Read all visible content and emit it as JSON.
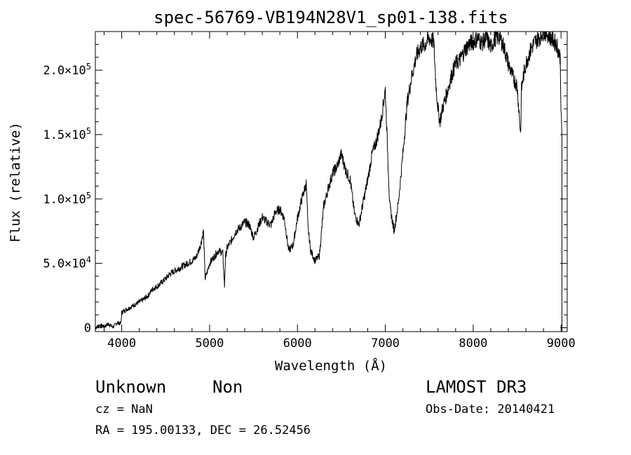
{
  "chart_data": {
    "type": "line",
    "title": "spec-56769-VB194N28V1_sp01-138.fits",
    "xlabel": "Wavelength (Å)",
    "ylabel": "Flux (relative)",
    "xlim": [
      3700,
      9070
    ],
    "ylim": [
      -3000,
      230000
    ],
    "x_ticks": [
      4000,
      5000,
      6000,
      7000,
      8000,
      9000
    ],
    "x_tick_labels": [
      "4000",
      "5000",
      "6000",
      "7000",
      "8000",
      "9000"
    ],
    "y_ticks": [
      0,
      50000,
      100000,
      150000,
      200000
    ],
    "y_tick_labels": [
      {
        "mant": "0",
        "exp": ""
      },
      {
        "mant": "5.0×10",
        "exp": "4"
      },
      {
        "mant": "1.0×10",
        "exp": "5"
      },
      {
        "mant": "1.5×10",
        "exp": "5"
      },
      {
        "mant": "2.0×10",
        "exp": "5"
      }
    ],
    "series": [
      {
        "name": "flux",
        "x": [
          3700,
          3750,
          3800,
          3850,
          3900,
          3950,
          3990,
          4000,
          4050,
          4100,
          4150,
          4200,
          4250,
          4300,
          4350,
          4400,
          4450,
          4500,
          4550,
          4600,
          4650,
          4700,
          4750,
          4800,
          4850,
          4900,
          4930,
          4950,
          4980,
          5000,
          5050,
          5100,
          5150,
          5170,
          5180,
          5200,
          5250,
          5300,
          5350,
          5400,
          5450,
          5500,
          5550,
          5600,
          5650,
          5700,
          5750,
          5800,
          5850,
          5900,
          5950,
          6000,
          6050,
          6100,
          6120,
          6150,
          6200,
          6250,
          6300,
          6350,
          6400,
          6450,
          6500,
          6550,
          6600,
          6650,
          6700,
          6750,
          6800,
          6850,
          6900,
          6950,
          7000,
          7030,
          7050,
          7100,
          7150,
          7200,
          7250,
          7300,
          7350,
          7400,
          7450,
          7500,
          7550,
          7580,
          7600,
          7620,
          7650,
          7700,
          7750,
          7800,
          7850,
          7900,
          7950,
          8000,
          8050,
          8100,
          8150,
          8200,
          8250,
          8300,
          8350,
          8400,
          8450,
          8500,
          8530,
          8540,
          8550,
          8570,
          8600,
          8650,
          8700,
          8750,
          8800,
          8850,
          8900,
          8950,
          8990,
          9000,
          9010
        ],
        "y": [
          0,
          2000,
          1000,
          3000,
          500,
          4000,
          3000,
          12000,
          14000,
          16000,
          18000,
          20000,
          22000,
          25000,
          30000,
          32000,
          35000,
          38000,
          42000,
          44000,
          46000,
          48000,
          50000,
          52000,
          55000,
          65000,
          75000,
          38000,
          45000,
          50000,
          55000,
          60000,
          58000,
          32000,
          55000,
          62000,
          68000,
          75000,
          78000,
          82000,
          80000,
          70000,
          78000,
          86000,
          82000,
          80000,
          90000,
          92000,
          85000,
          60000,
          64000,
          85000,
          100000,
          112000,
          78000,
          60000,
          52000,
          56000,
          95000,
          108000,
          120000,
          125000,
          135000,
          122000,
          115000,
          88000,
          80000,
          98000,
          115000,
          135000,
          145000,
          160000,
          185000,
          130000,
          95000,
          75000,
          98000,
          135000,
          175000,
          195000,
          210000,
          218000,
          220000,
          225000,
          222000,
          185000,
          170000,
          160000,
          170000,
          182000,
          195000,
          205000,
          208000,
          215000,
          220000,
          222000,
          225000,
          221000,
          225000,
          218000,
          225000,
          226000,
          218000,
          205000,
          195000,
          188000,
          160000,
          150000,
          185000,
          195000,
          205000,
          215000,
          222000,
          225000,
          230000,
          228000,
          224000,
          220000,
          210000,
          170000,
          145000
        ]
      }
    ]
  },
  "info": {
    "object_class": "Unknown",
    "object_subclass": "Non",
    "survey": "LAMOST DR3",
    "cz": "cz = NaN",
    "obs_date": "Obs-Date: 20140421",
    "coords": "RA = 195.00133, DEC =  26.52456"
  },
  "colors": {
    "background": "#ffffff",
    "line": "#000000"
  }
}
